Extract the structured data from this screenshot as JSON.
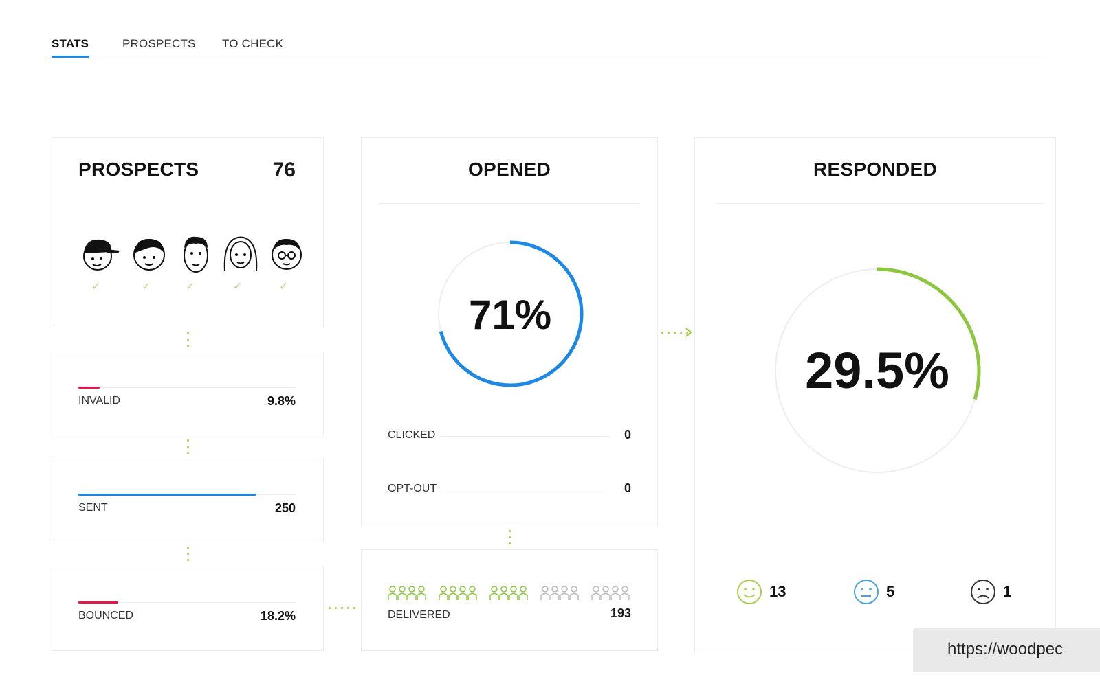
{
  "tabs": [
    {
      "label": "STATS",
      "active": true
    },
    {
      "label": "PROSPECTS",
      "active": false
    },
    {
      "label": "TO CHECK",
      "active": false
    }
  ],
  "prospects": {
    "title": "PROSPECTS",
    "count": "76",
    "avatars": [
      "cap-face-icon",
      "girl-face-icon",
      "man-face-icon",
      "woman-face-icon",
      "glasses-face-icon"
    ]
  },
  "invalid": {
    "label": "INVALID",
    "value": "9.8%",
    "percent": 9.8,
    "color": "#e2184a"
  },
  "sent": {
    "label": "SENT",
    "value": "250",
    "fill_fraction": 0.82,
    "color": "#1e88e5"
  },
  "bounced": {
    "label": "BOUNCED",
    "value": "18.2%",
    "percent": 18.2,
    "color": "#e2184a"
  },
  "opened": {
    "title": "OPENED",
    "percent_label": "71%",
    "percent": 71,
    "ring_color": "#1e88e5",
    "clicked": {
      "label": "CLICKED",
      "value": "0"
    },
    "opt_out": {
      "label": "OPT-OUT",
      "value": "0"
    }
  },
  "delivered": {
    "label": "DELIVERED",
    "value": "193",
    "icon": "people-group-icon",
    "filled_groups": 3
  },
  "responded": {
    "title": "RESPONDED",
    "percent_label": "29.5%",
    "percent": 29.5,
    "ring_color": "#8dc63f",
    "positive": {
      "icon": "happy-face-icon",
      "count": "13",
      "color": "#a6cf4f"
    },
    "neutral": {
      "icon": "neutral-face-icon",
      "count": "5",
      "color": "#4aa3df"
    },
    "negative": {
      "icon": "sad-face-icon",
      "count": "1",
      "color": "#333333"
    }
  },
  "url_overlay": "https://woodpec"
}
